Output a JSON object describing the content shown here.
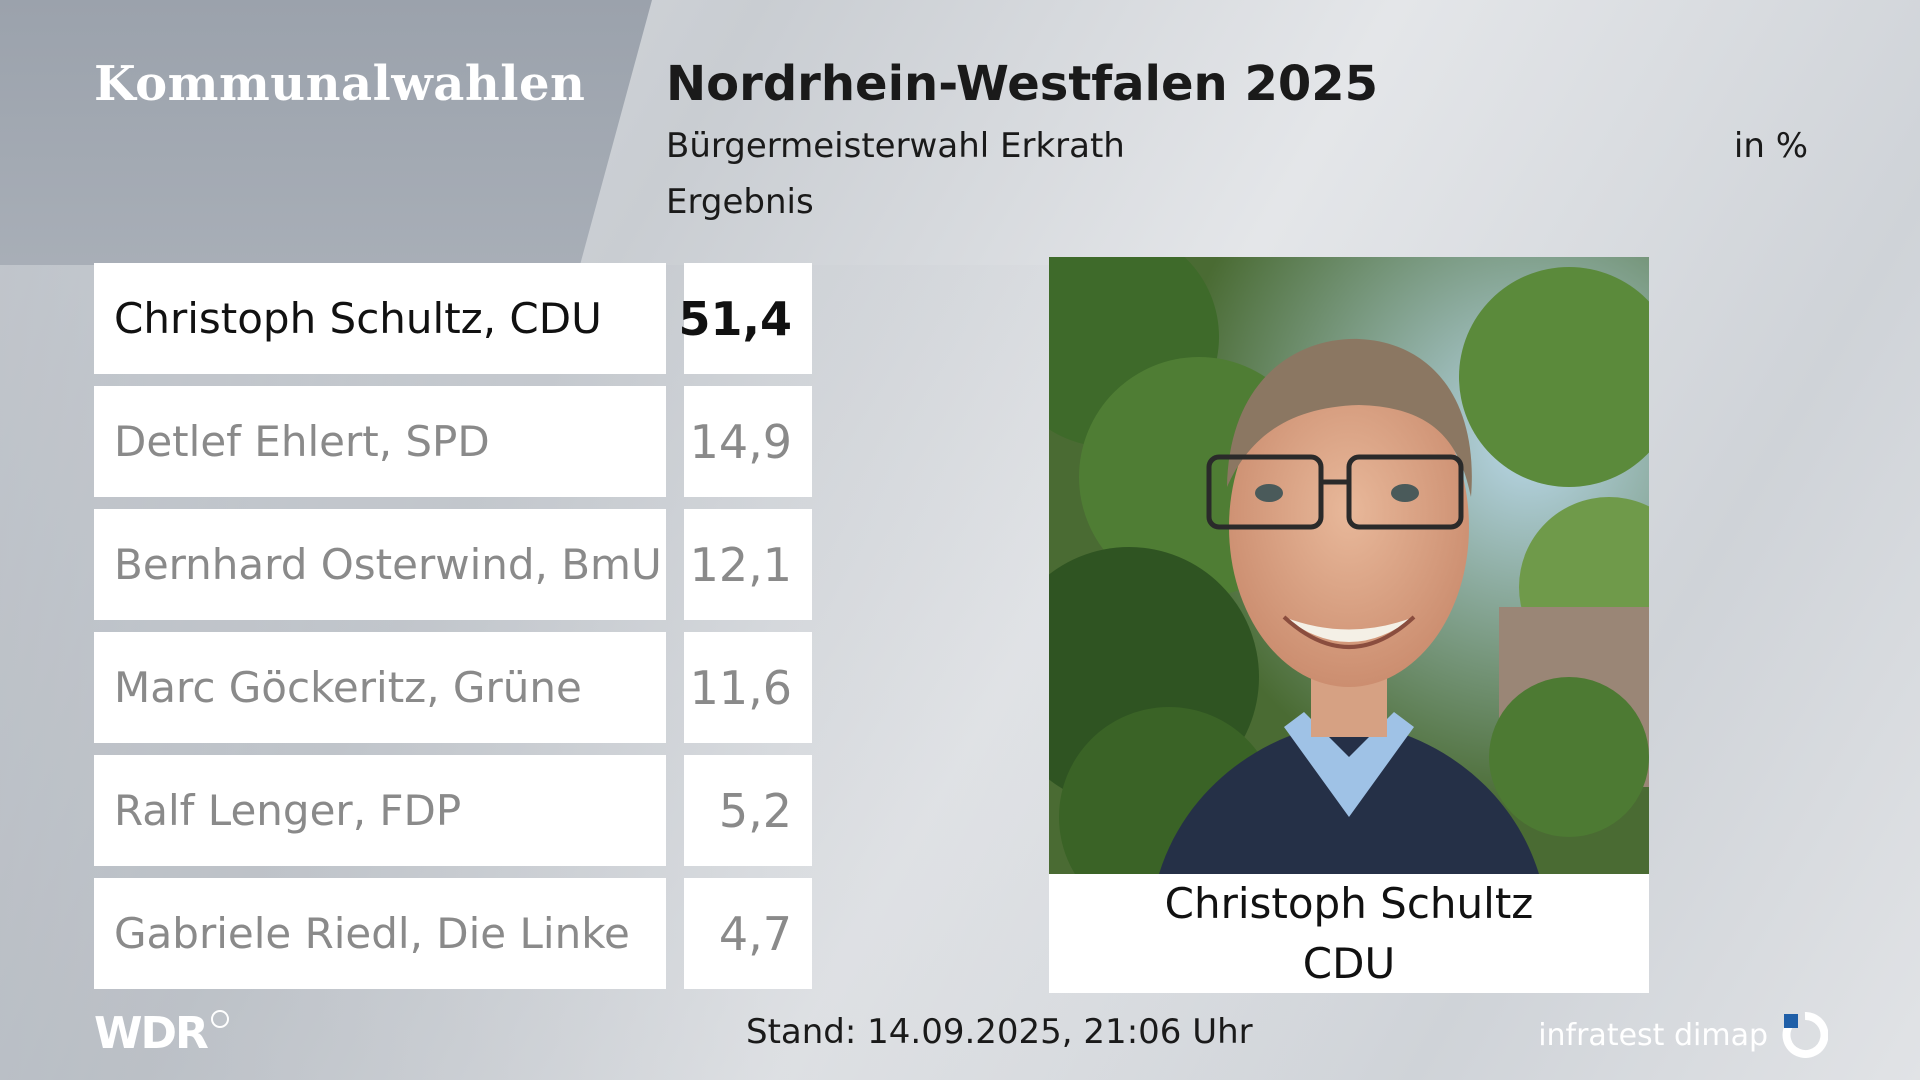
{
  "header": {
    "section_title": "Kommunalwahlen",
    "title": "Nordrhein-Westfalen 2025",
    "subtitle": "Bürgermeisterwahl Erkrath",
    "subtitle2": "Ergebnis",
    "unit": "in %"
  },
  "results": [
    {
      "name": "Christoph Schultz, CDU",
      "value": "51,4",
      "winner": true
    },
    {
      "name": "Detlef Ehlert, SPD",
      "value": "14,9",
      "winner": false
    },
    {
      "name": "Bernhard Osterwind, BmU",
      "value": "12,1",
      "winner": false
    },
    {
      "name": "Marc Göckeritz, Grüne",
      "value": "11,6",
      "winner": false
    },
    {
      "name": "Ralf Lenger, FDP",
      "value": "5,2",
      "winner": false
    },
    {
      "name": "Gabriele Riedl, Die Linke",
      "value": "4,7",
      "winner": false
    }
  ],
  "winner_card": {
    "name": "Christoph Schultz",
    "party": "CDU"
  },
  "footer": {
    "broadcaster_logo": "WDR",
    "status": "Stand: 14.09.2025, 21:06 Uhr",
    "pollster": "infratest dimap"
  },
  "colors": {
    "winner_text": "#111111",
    "other_text": "#8a8a8a",
    "box_bg": "#ffffff"
  }
}
